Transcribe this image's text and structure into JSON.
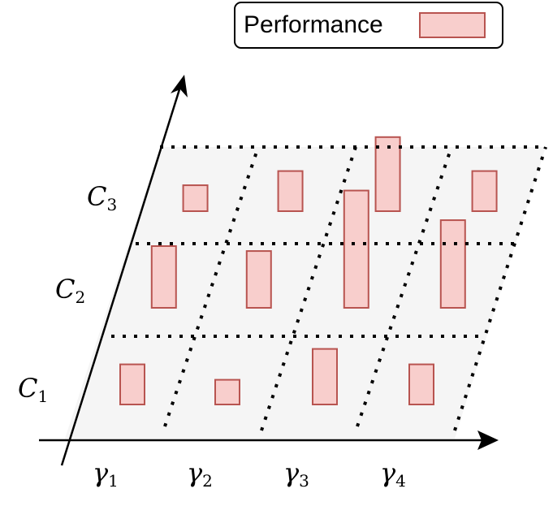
{
  "legend": {
    "label": "Performance",
    "swatch_fill": "#f8cecc",
    "swatch_stroke": "#b85450"
  },
  "y_labels": [
    {
      "letter": "C",
      "sub": "3"
    },
    {
      "letter": "C",
      "sub": "2"
    },
    {
      "letter": "C",
      "sub": "1"
    }
  ],
  "x_labels": [
    {
      "letter": "γ",
      "sub": "1"
    },
    {
      "letter": "γ",
      "sub": "2"
    },
    {
      "letter": "γ",
      "sub": "3"
    },
    {
      "letter": "γ",
      "sub": "4"
    }
  ],
  "colors": {
    "plane": "#f5f5f5",
    "bar_fill": "#f8cecc",
    "bar_stroke": "#b85450",
    "line": "#000000"
  },
  "bars": [
    {
      "gamma": 1,
      "C": 1,
      "value": 0.65
    },
    {
      "gamma": 1,
      "C": 2,
      "value": 1.0
    },
    {
      "gamma": 1,
      "C": 3,
      "value": 0.42
    },
    {
      "gamma": 2,
      "C": 1,
      "value": 0.4
    },
    {
      "gamma": 2,
      "C": 2,
      "value": 0.92
    },
    {
      "gamma": 2,
      "C": 3,
      "value": 0.65
    },
    {
      "gamma": 3,
      "C": 1,
      "value": 0.9
    },
    {
      "gamma": 3,
      "C": 2,
      "value": 1.9
    },
    {
      "gamma": 3,
      "C": 3,
      "value": 1.2
    },
    {
      "gamma": 4,
      "C": 1,
      "value": 0.65
    },
    {
      "gamma": 4,
      "C": 2,
      "value": 1.42
    },
    {
      "gamma": 4,
      "C": 3,
      "value": 0.65
    }
  ]
}
